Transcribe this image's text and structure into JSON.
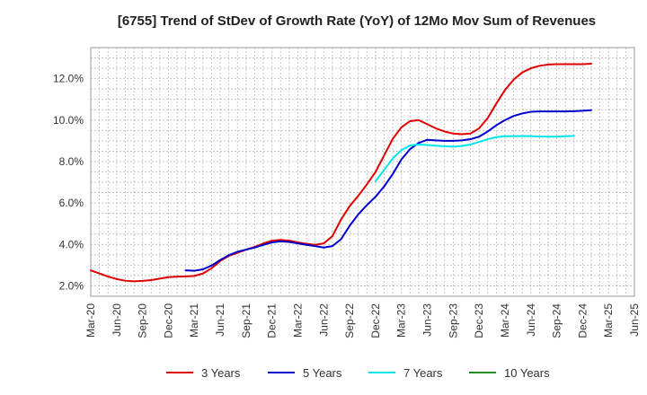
{
  "chart_data": {
    "type": "line",
    "title": "[6755]  Trend of StDev of Growth Rate (YoY) of 12Mo Mov Sum of Revenues",
    "xlabel": "",
    "ylabel": "",
    "ylim": [
      1.5,
      13.5
    ],
    "yticks": [
      2.0,
      4.0,
      6.0,
      8.0,
      10.0,
      12.0
    ],
    "ytick_labels": [
      "2.0%",
      "4.0%",
      "6.0%",
      "8.0%",
      "10.0%",
      "12.0%"
    ],
    "x_range": [
      0,
      63
    ],
    "x_tick_positions": [
      0,
      3,
      6,
      9,
      12,
      15,
      18,
      21,
      24,
      27,
      30,
      33,
      36,
      39,
      42,
      45,
      48,
      51,
      54,
      57,
      60,
      63
    ],
    "x_tick_labels": [
      "Mar-20",
      "Jun-20",
      "Sep-20",
      "Dec-20",
      "Mar-21",
      "Jun-21",
      "Sep-21",
      "Dec-21",
      "Mar-22",
      "Jun-22",
      "Sep-22",
      "Dec-22",
      "Mar-23",
      "Jun-23",
      "Sep-23",
      "Dec-23",
      "Mar-24",
      "Jun-24",
      "Sep-24",
      "Dec-24",
      "Mar-25",
      "Jun-25"
    ],
    "grid": true,
    "legend_position": "bottom",
    "series": [
      {
        "name": "3 Years",
        "color": "#dd0000",
        "start_index": 0,
        "values": [
          2.75,
          2.6,
          2.45,
          2.33,
          2.25,
          2.22,
          2.24,
          2.28,
          2.35,
          2.42,
          2.45,
          2.46,
          2.48,
          2.6,
          2.85,
          3.2,
          3.45,
          3.6,
          3.75,
          3.88,
          4.05,
          4.18,
          4.22,
          4.18,
          4.1,
          4.03,
          3.98,
          4.05,
          4.4,
          5.2,
          5.85,
          6.35,
          6.9,
          7.5,
          8.3,
          9.1,
          9.65,
          9.95,
          10.0,
          9.8,
          9.6,
          9.45,
          9.35,
          9.32,
          9.35,
          9.6,
          10.1,
          10.8,
          11.45,
          11.95,
          12.3,
          12.5,
          12.62,
          12.68,
          12.7,
          12.7,
          12.7,
          12.7,
          12.72
        ]
      },
      {
        "name": "5 Years",
        "color": "#0000cc",
        "start_index": 11,
        "values": [
          2.75,
          2.73,
          2.8,
          2.98,
          3.25,
          3.48,
          3.65,
          3.75,
          3.85,
          3.98,
          4.1,
          4.15,
          4.12,
          4.05,
          3.98,
          3.92,
          3.85,
          3.92,
          4.25,
          4.9,
          5.45,
          5.9,
          6.3,
          6.8,
          7.4,
          8.1,
          8.6,
          8.9,
          9.05,
          9.02,
          9.0,
          9.0,
          9.02,
          9.08,
          9.2,
          9.45,
          9.75,
          10.0,
          10.2,
          10.32,
          10.4,
          10.42,
          10.42,
          10.42,
          10.42,
          10.43,
          10.45,
          10.48
        ]
      },
      {
        "name": "7 Years",
        "color": "#00e5ee",
        "start_index": 33,
        "values": [
          7.05,
          7.6,
          8.15,
          8.55,
          8.78,
          8.82,
          8.8,
          8.76,
          8.74,
          8.72,
          8.75,
          8.82,
          8.95,
          9.08,
          9.18,
          9.22,
          9.23,
          9.23,
          9.23,
          9.21,
          9.2,
          9.2,
          9.22,
          9.24
        ]
      },
      {
        "name": "10 Years",
        "color": "#228b22",
        "start_index": 0,
        "values": []
      }
    ]
  }
}
